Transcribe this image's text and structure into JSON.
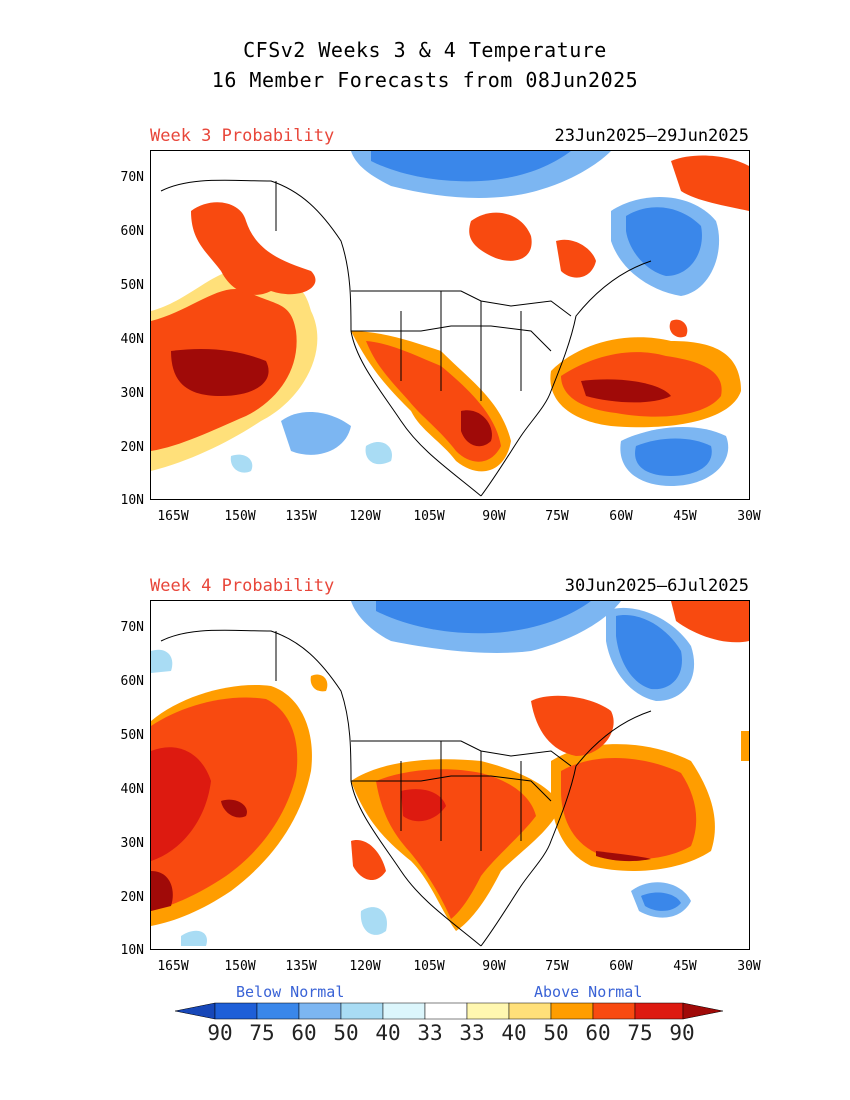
{
  "title_line1": "CFSv2 Weeks 3 & 4 Temperature",
  "title_line2": "16 Member Forecasts from 08Jun2025",
  "panels": [
    {
      "label": "Week 3 Probability",
      "dates": "23Jun2025—29Jun2025"
    },
    {
      "label": "Week 4 Probability",
      "dates": "30Jun2025—6Jul2025"
    }
  ],
  "lat_ticks": [
    "70N",
    "60N",
    "50N",
    "40N",
    "30N",
    "20N",
    "10N"
  ],
  "lon_ticks": [
    "165W",
    "150W",
    "135W",
    "120W",
    "105W",
    "90W",
    "75W",
    "60W",
    "45W",
    "30W"
  ],
  "legend": {
    "below_label": "Below Normal",
    "above_label": "Above Normal",
    "tick_labels": [
      "90",
      "75",
      "60",
      "50",
      "40",
      "33",
      "33",
      "40",
      "50",
      "60",
      "75",
      "90"
    ],
    "below_colors": [
      "#1e5fd8",
      "#3a87ea",
      "#7cb6f2",
      "#a9dcf4",
      "#dcf6fc"
    ],
    "above_colors": [
      "#fff7b0",
      "#ffe07a",
      "#ff9d00",
      "#f84a10",
      "#dd1a10"
    ],
    "below_extreme": "#1747b8",
    "above_extreme": "#a00a08"
  }
}
